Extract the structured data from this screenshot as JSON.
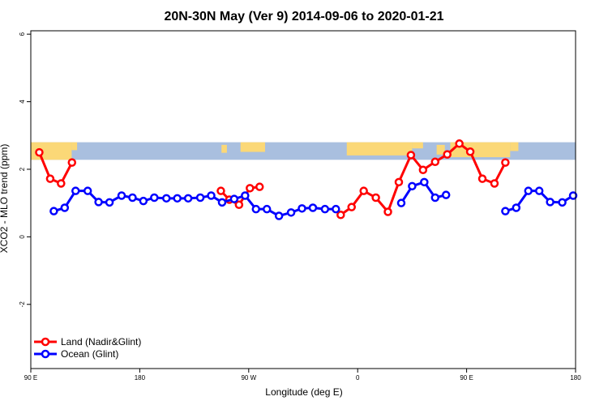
{
  "chart_data": {
    "type": "line",
    "title": "20N-30N May (Ver 9)   2014-09-06 to 2020-01-21",
    "xlabel": "Longitude (deg E)",
    "ylabel": "XCO2 - MLO trend (ppm)",
    "x_ticks": [
      {
        "value": 90,
        "label": "90 E"
      },
      {
        "value": 180,
        "label": "180"
      },
      {
        "value": 270,
        "label": "90 W"
      },
      {
        "value": 360,
        "label": "0"
      },
      {
        "value": 450,
        "label": "90 E"
      },
      {
        "value": 540,
        "label": "180"
      }
    ],
    "xlim": [
      90,
      540
    ],
    "y_ticks": [
      -2,
      0,
      2,
      4,
      6
    ],
    "ylim": [
      -3.9,
      6.1
    ],
    "map_band_y": [
      2.28,
      2.8
    ],
    "legend_position": "bottom-left",
    "series": [
      {
        "name": "Land (Nadir&Glint)",
        "color": "#ff0000",
        "x": [
          97,
          106,
          115,
          124,
          null,
          247,
          254,
          262,
          271,
          279,
          null,
          346,
          355,
          365,
          375,
          385,
          394,
          404,
          414,
          424,
          434,
          444,
          453,
          463,
          473,
          482,
          492
        ],
        "y": [
          2.5,
          1.72,
          1.58,
          2.2,
          null,
          1.36,
          1.1,
          0.95,
          1.44,
          1.48,
          null,
          0.65,
          0.88,
          1.36,
          1.16,
          0.74,
          1.62,
          2.42,
          1.98,
          2.22,
          2.44,
          2.76,
          2.52,
          1.72,
          1.58,
          2.2,
          null
        ]
      },
      {
        "name": "Ocean (Glint)",
        "color": "#0000ff",
        "x": [
          109,
          118,
          127,
          137,
          146,
          155,
          165,
          174,
          183,
          192,
          202,
          211,
          220,
          230,
          239,
          248,
          258,
          267,
          276,
          285,
          295,
          305,
          314,
          323,
          333,
          342,
          351,
          null,
          396,
          405,
          415,
          424,
          433,
          null,
          482,
          491,
          501,
          510,
          519,
          529,
          538
        ],
        "y": [
          0.76,
          0.86,
          1.36,
          1.36,
          1.03,
          1.02,
          1.22,
          1.16,
          1.06,
          1.16,
          1.14,
          1.14,
          1.14,
          1.16,
          1.22,
          1.02,
          1.12,
          1.22,
          0.82,
          0.82,
          0.62,
          0.72,
          0.84,
          0.86,
          0.82,
          0.82,
          null,
          null,
          1.0,
          1.5,
          1.62,
          1.16,
          1.24,
          null,
          0.76,
          0.86,
          1.36,
          1.36,
          1.03,
          1.02,
          1.22
        ]
      }
    ]
  }
}
